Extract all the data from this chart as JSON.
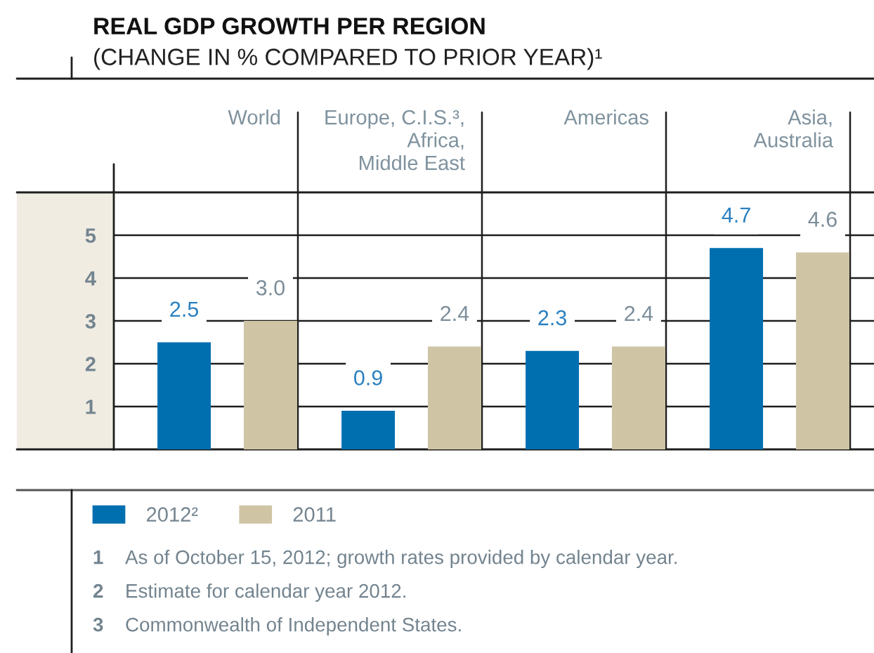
{
  "chart_data": {
    "type": "bar",
    "title": "REAL GDP GROWTH PER REGION",
    "subtitle": "(CHANGE IN % COMPARED TO PRIOR YEAR)¹",
    "categories": [
      "World",
      "Europe, C.I.S.³,\nAfrica,\nMiddle East",
      "Americas",
      "Asia,\nAustralia"
    ],
    "series": [
      {
        "name": "2012²",
        "color": "#006fb0",
        "values": [
          2.5,
          0.9,
          2.3,
          4.7
        ],
        "value_labels": [
          "2.5",
          "0.9",
          "2.3",
          "4.7"
        ]
      },
      {
        "name": "2011",
        "color": "#cfc5a5",
        "values": [
          3.0,
          2.4,
          2.4,
          4.6
        ],
        "value_labels": [
          "3.0",
          "2.4",
          "2.4",
          "4.6"
        ]
      }
    ],
    "ylim": [
      0,
      6
    ],
    "yticks": [
      1,
      2,
      3,
      4,
      5
    ],
    "grid": true,
    "legend": "bottom",
    "annotations": [
      "1 As of October 15, 2012; growth rates provided by calendar year.",
      "2 Estimate for calendar year 2012.",
      "3 Commonwealth of Independent States."
    ]
  }
}
